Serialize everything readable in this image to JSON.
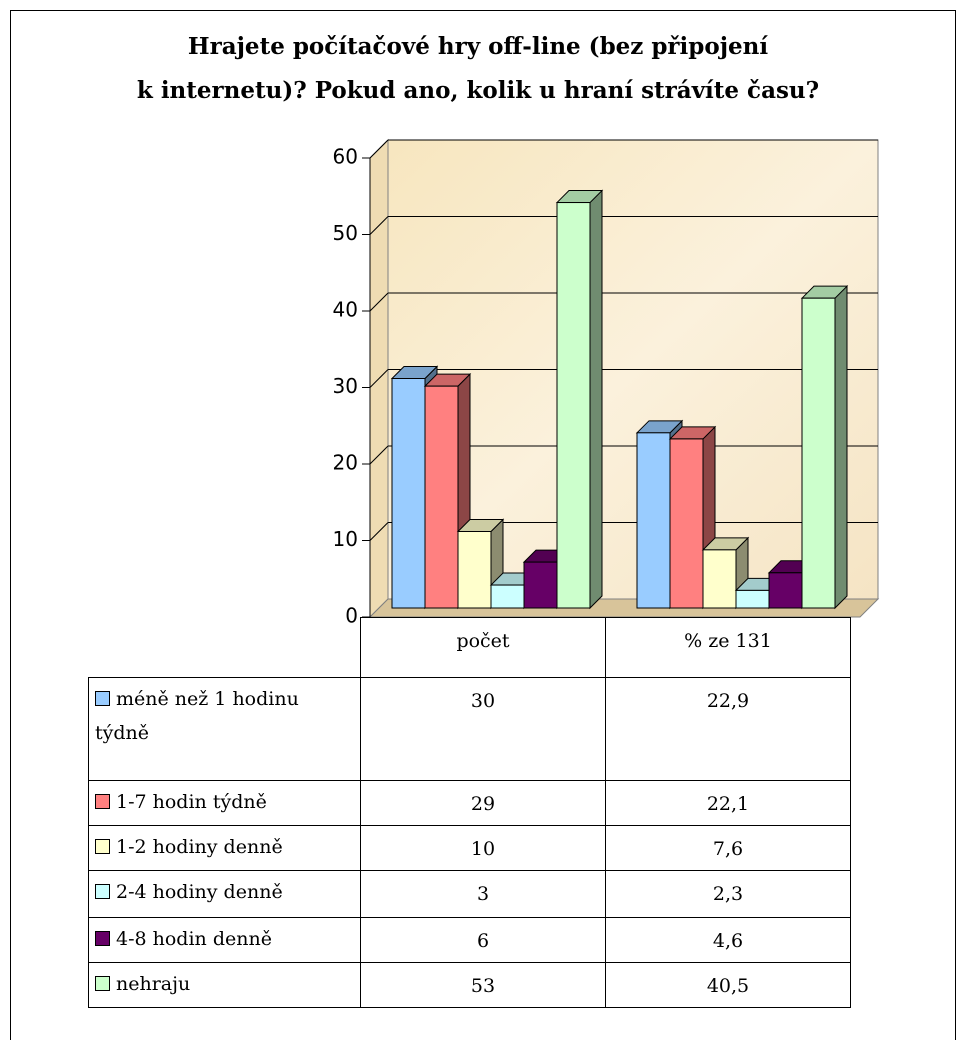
{
  "chart_data": {
    "type": "bar",
    "title": [
      "Hrajete počítačové hry off-line (bez připojení",
      "k internetu)? Pokud ano, kolik u hraní strávíte času?"
    ],
    "categories": [
      "počet",
      "% ze 131"
    ],
    "series": [
      {
        "name": "méně než 1 hodinu týdně",
        "color": "#99ccff",
        "values": [
          30,
          22.9
        ],
        "value_labels": [
          "30",
          "22,9"
        ]
      },
      {
        "name": "1-7 hodin týdně",
        "color": "#ff8080",
        "values": [
          29,
          22.1
        ],
        "value_labels": [
          "29",
          "22,1"
        ]
      },
      {
        "name": "1-2 hodiny denně",
        "color": "#ffffcc",
        "values": [
          10,
          7.6
        ],
        "value_labels": [
          "10",
          "7,6"
        ]
      },
      {
        "name": "2-4 hodiny denně",
        "color": "#ccffff",
        "values": [
          3,
          2.3
        ],
        "value_labels": [
          "3",
          "2,3"
        ]
      },
      {
        "name": "4-8 hodin denně",
        "color": "#660066",
        "values": [
          6,
          4.6
        ],
        "value_labels": [
          "6",
          "4,6"
        ]
      },
      {
        "name": "nehraju",
        "color": "#ccffcc",
        "values": [
          53,
          40.5
        ],
        "value_labels": [
          "53",
          "40,5"
        ]
      }
    ],
    "ylim": [
      0,
      60
    ],
    "yticks": [
      0,
      10,
      20,
      30,
      40,
      50,
      60
    ],
    "grid": true
  }
}
